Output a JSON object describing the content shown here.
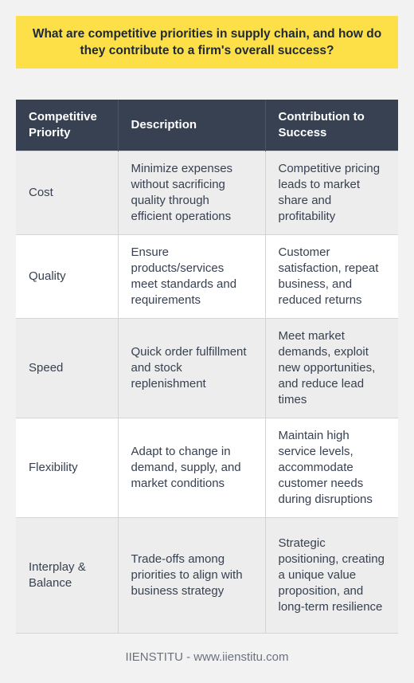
{
  "title": "What are competitive priorities in supply chain, and how do they contribute to a firm's overall success?",
  "table": {
    "headers": [
      "Competitive Priority",
      "Description",
      "Contribution to Success"
    ],
    "rows": [
      {
        "priority": "Cost",
        "description": "Minimize expenses without sacrificing quality through efficient operations",
        "contribution": "Competitive pricing leads to market share and profitability"
      },
      {
        "priority": "Quality",
        "description": "Ensure products/services meet standards and requirements",
        "contribution": "Customer satisfaction, repeat business, and reduced returns"
      },
      {
        "priority": "Speed",
        "description": "Quick order fulfillment and stock replenishment",
        "contribution": "Meet market demands, exploit new opportunities, and reduce lead times"
      },
      {
        "priority": "Flexibility",
        "description": "Adapt to change in demand, supply, and market conditions",
        "contribution": "Maintain high service levels, accommodate customer needs during disruptions"
      },
      {
        "priority": "Interplay & Balance",
        "description": "Trade-offs among priorities to align with business strategy",
        "contribution": "Strategic positioning, creating a unique value proposition, and long-term resilience"
      }
    ]
  },
  "footer": "IIENSTITU - www.iienstitu.com",
  "colors": {
    "title_background": "#fde047",
    "header_background": "#374151",
    "page_background": "#f2f2f2"
  }
}
